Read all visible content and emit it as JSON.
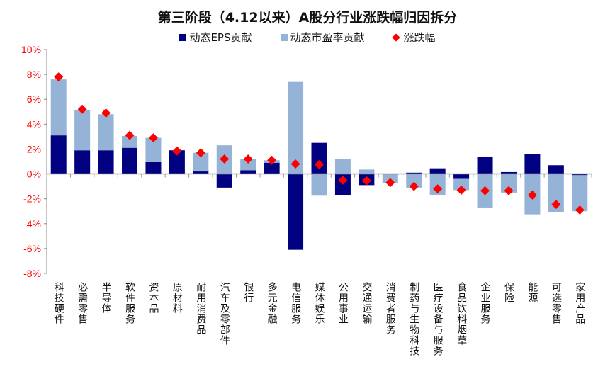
{
  "chart_data": {
    "type": "bar",
    "title": "第三阶段（4.12以来）A股分行业涨跌幅归因拆分",
    "categories": [
      "科技硬件",
      "必需零售",
      "半导体",
      "软件服务",
      "资本品",
      "原材料",
      "耐用消费品",
      "汽车及零部件",
      "银行",
      "多元金融",
      "电信服务",
      "媒体娱乐",
      "公用事业",
      "交通运输",
      "消费者服务",
      "制药与生物科技",
      "医疗设备与服务",
      "食品饮料烟草",
      "企业服务",
      "保险",
      "能源",
      "可选零售",
      "家用产品"
    ],
    "series": [
      {
        "name": "动态EPS贡献",
        "kind": "stacked-bar",
        "color": "#000080",
        "values": [
          3.1,
          1.9,
          1.9,
          2.1,
          0.95,
          1.9,
          0.2,
          -1.1,
          0.3,
          0.9,
          -6.1,
          2.5,
          -1.7,
          -0.9,
          -0.03,
          0.1,
          0.45,
          -0.4,
          1.4,
          0.15,
          1.6,
          0.7,
          -0.1
        ]
      },
      {
        "name": "动态市盈率贡献",
        "kind": "stacked-bar",
        "color": "#95B3D7",
        "values": [
          4.5,
          3.25,
          2.9,
          0.95,
          1.95,
          0,
          1.5,
          2.3,
          0.9,
          0.2,
          7.4,
          -1.75,
          1.2,
          0.35,
          -0.72,
          -1.1,
          -1.7,
          -0.9,
          -2.7,
          -1.5,
          -3.25,
          -3.1,
          -2.9
        ]
      },
      {
        "name": "涨跌幅",
        "kind": "marker",
        "color": "#FF0000",
        "values": [
          7.8,
          5.2,
          4.9,
          3.1,
          2.9,
          1.85,
          1.7,
          1.2,
          1.2,
          1.1,
          0.8,
          0.75,
          -0.5,
          -0.55,
          -0.7,
          -1.0,
          -1.2,
          -1.3,
          -1.35,
          -1.35,
          -1.7,
          -2.45,
          -2.9
        ]
      }
    ],
    "yticks": [
      "10%",
      "8%",
      "6%",
      "4%",
      "2%",
      "0%",
      "-2%",
      "-4%",
      "-6%",
      "-8%"
    ],
    "ylim": [
      -8,
      10
    ],
    "ytick_color": "#FF0000",
    "grid": false,
    "legend_position": "top"
  }
}
